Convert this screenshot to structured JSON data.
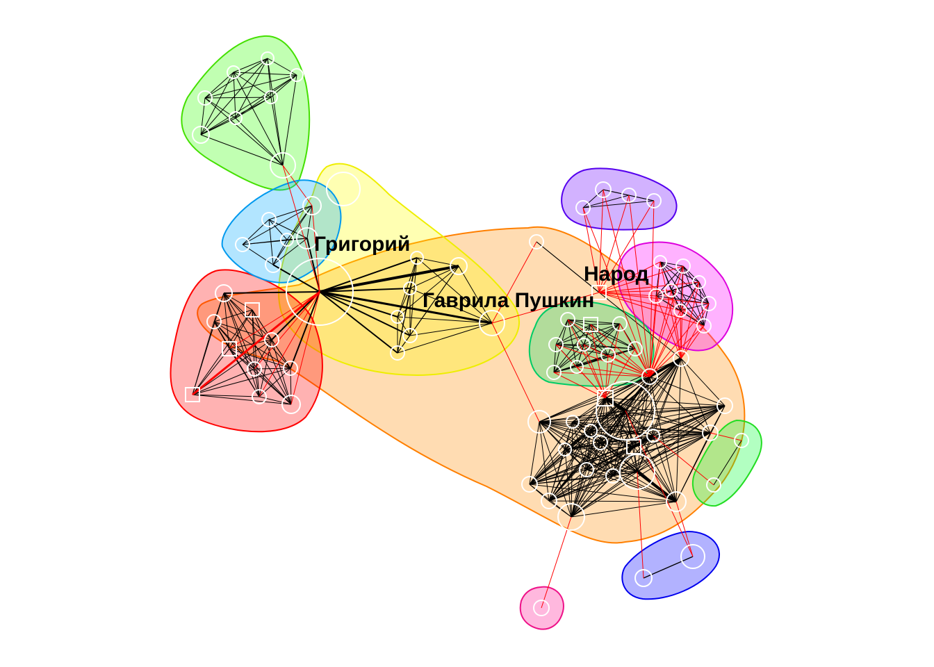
{
  "labels": {
    "grigoriy": "Григорий",
    "gavrila": "Гаврила Пушкин",
    "narod": "Народ"
  },
  "colors": {
    "community_fills": [
      "#ff0000",
      "#ff7f00",
      "#ffff00",
      "#00ff00",
      "#00b2ff",
      "#7f00ff",
      "#ff00ff",
      "#00e57f",
      "#0000ff",
      "#ff1493"
    ],
    "intra_edge": "#000000",
    "inter_edge": "#ff0000",
    "node_stroke": "#ffffff"
  },
  "communities": [
    {
      "id": "red-cluster",
      "fill": "#ff0000",
      "stroke": "#ff0000"
    },
    {
      "id": "orange-cluster",
      "fill": "#ff8c00",
      "stroke": "#ff7f00"
    },
    {
      "id": "yellow-cluster",
      "fill": "#ffff00",
      "stroke": "#f0f000"
    },
    {
      "id": "green-top-cluster",
      "fill": "#33ff00",
      "stroke": "#44e000"
    },
    {
      "id": "blue-light-cluster",
      "fill": "#00aaff",
      "stroke": "#0099ee"
    },
    {
      "id": "purple-cluster",
      "fill": "#6a00ff",
      "stroke": "#5500ee"
    },
    {
      "id": "magenta-cluster",
      "fill": "#ff00ff",
      "stroke": "#dd00dd"
    },
    {
      "id": "teal-green-cluster",
      "fill": "#00dd66",
      "stroke": "#00cc66"
    },
    {
      "id": "small-green-cluster",
      "fill": "#00ff33",
      "stroke": "#22dd22"
    },
    {
      "id": "blue-cluster",
      "fill": "#0000ff",
      "stroke": "#0000ee"
    },
    {
      "id": "pink-cluster",
      "fill": "#ff1493",
      "stroke": "#ee1188"
    }
  ]
}
